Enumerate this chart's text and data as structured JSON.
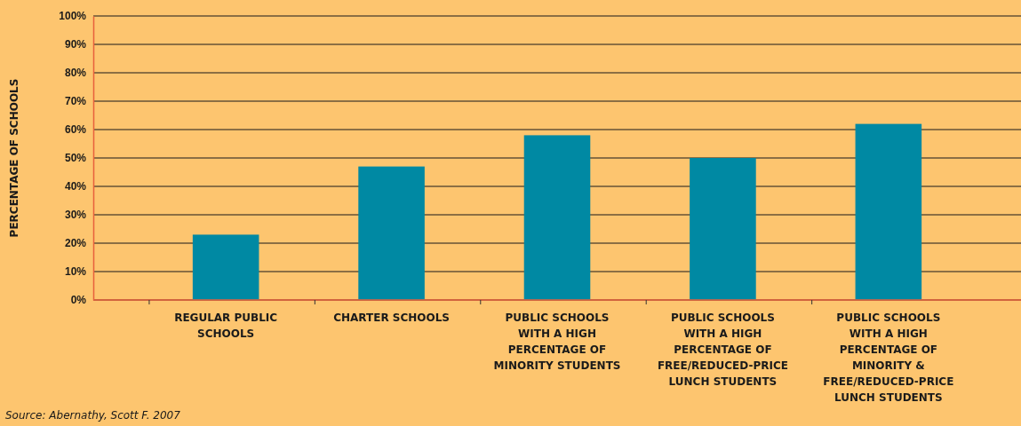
{
  "chart_data": {
    "type": "bar",
    "ylabel": "PERCENTAGE OF SCHOOLS",
    "categories": [
      "REGULAR PUBLIC SCHOOLS",
      "CHARTER SCHOOLS",
      "PUBLIC SCHOOLS WITH A HIGH PERCENTAGE OF MINORITY STUDENTS",
      "PUBLIC SCHOOLS WITH A HIGH PERCENTAGE OF FREE/REDUCED-PRICE LUNCH STUDENTS",
      "PUBLIC SCHOOLS WITH A HIGH PERCENTAGE OF MINORITY & FREE/REDUCED-PRICE LUNCH STUDENTS"
    ],
    "values": [
      23,
      47,
      58,
      50,
      62
    ],
    "color": "#0089a3",
    "ylim": [
      0,
      100
    ],
    "yticks": [
      {
        "value": 0,
        "label": "0%"
      },
      {
        "value": 10,
        "label": "10%"
      },
      {
        "value": 20,
        "label": "20%"
      },
      {
        "value": 30,
        "label": "30%"
      },
      {
        "value": 40,
        "label": "40%"
      },
      {
        "value": 50,
        "label": "50%"
      },
      {
        "value": 60,
        "label": "60%"
      },
      {
        "value": 70,
        "label": "70%"
      },
      {
        "value": 80,
        "label": "80%"
      },
      {
        "value": 90,
        "label": "90%"
      },
      {
        "value": 100,
        "label": "100%"
      }
    ],
    "grid": "y",
    "annotations": [
      "Source: Abernathy, Scott F. 2007"
    ]
  }
}
